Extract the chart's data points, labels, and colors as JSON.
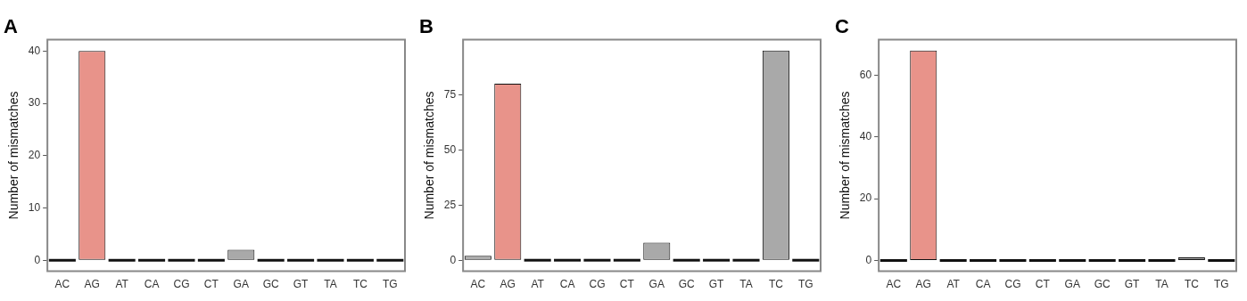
{
  "chart_data": [
    {
      "type": "bar",
      "title": "A",
      "ylabel": "Number of mismatches",
      "categories": [
        "AC",
        "AG",
        "AT",
        "CA",
        "CG",
        "CT",
        "GA",
        "GC",
        "GT",
        "TA",
        "TC",
        "TG"
      ],
      "values": [
        0,
        40,
        0,
        0,
        0,
        0,
        2,
        0,
        0,
        0,
        0,
        0
      ],
      "colors": [
        "#111111",
        "#e8938a",
        "#111111",
        "#111111",
        "#111111",
        "#111111",
        "#a9a9a9",
        "#111111",
        "#111111",
        "#111111",
        "#111111",
        "#111111"
      ],
      "ylim": [
        -2.1,
        42.2
      ],
      "yticks": [
        0,
        10,
        20,
        30,
        40
      ]
    },
    {
      "type": "bar",
      "title": "B",
      "ylabel": "Number of mismatches",
      "categories": [
        "AC",
        "AG",
        "AT",
        "CA",
        "CG",
        "CT",
        "GA",
        "GC",
        "GT",
        "TA",
        "TC",
        "TG"
      ],
      "values": [
        2,
        80,
        0,
        0,
        0,
        0,
        8,
        0,
        0,
        0,
        95,
        0
      ],
      "colors": [
        "#a9a9a9",
        "#e8938a",
        "#111111",
        "#111111",
        "#111111",
        "#111111",
        "#a9a9a9",
        "#111111",
        "#111111",
        "#111111",
        "#a9a9a9",
        "#111111"
      ],
      "ylim": [
        -5,
        100
      ],
      "yticks": [
        0,
        25,
        50,
        75
      ]
    },
    {
      "type": "bar",
      "title": "C",
      "ylabel": "Number of mismatches",
      "categories": [
        "AC",
        "AG",
        "AT",
        "CA",
        "CG",
        "CT",
        "GA",
        "GC",
        "GT",
        "TA",
        "TC",
        "TG"
      ],
      "values": [
        0,
        68,
        0,
        0,
        0,
        0,
        0,
        0,
        0,
        0,
        1,
        0
      ],
      "colors": [
        "#111111",
        "#e8938a",
        "#111111",
        "#111111",
        "#111111",
        "#111111",
        "#111111",
        "#111111",
        "#111111",
        "#111111",
        "#a9a9a9",
        "#111111"
      ],
      "ylim": [
        -3.5,
        71.6
      ],
      "yticks": [
        0,
        20,
        40,
        60
      ]
    }
  ]
}
